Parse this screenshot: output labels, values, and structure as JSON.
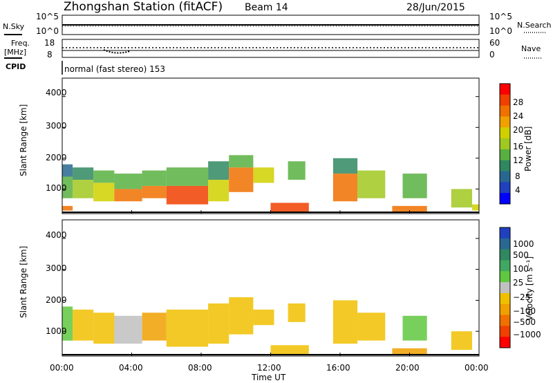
{
  "header": {
    "title": "Zhongshan Station (fitACF)",
    "beam": "Beam 14",
    "date": "28/Jun/2015"
  },
  "noise_panel": {
    "left_label": "N.Sky",
    "left_ticks": [
      "10^5",
      "10^0"
    ],
    "right_ticks": [
      "10^5",
      "10^0"
    ],
    "right_label": "N.Search"
  },
  "freq_panel": {
    "label_line1": "Freq.",
    "label_line2": "[MHz]",
    "left_ticks": [
      "18",
      "8"
    ],
    "right_ticks": [
      "60",
      "0"
    ],
    "right_label": "Nave"
  },
  "cpid": {
    "label": "CPID",
    "value": "normal (fast stereo) 153"
  },
  "axes": {
    "ylabel": "Slant Range [km]",
    "xlabel": "Time UT",
    "y_ticks": [
      "4000",
      "3000",
      "2000",
      "1000"
    ],
    "x_ticks": [
      "00:00",
      "04:00",
      "08:00",
      "12:00",
      "16:00",
      "20:00",
      "00:00"
    ]
  },
  "colorbars": {
    "power": {
      "label": "Power [dB]",
      "ticks": [
        "28",
        "24",
        "20",
        "16",
        "12",
        "8",
        "4"
      ],
      "colors": [
        "#ff0000",
        "#f04000",
        "#f07000",
        "#f0a000",
        "#d0d000",
        "#a0c820",
        "#58b040",
        "#308860",
        "#286890",
        "#2040c0",
        "#0000ff"
      ]
    },
    "velocity": {
      "label": "Velocity [m s⁻¹]",
      "ticks": [
        "1000",
        "500",
        "100",
        "25",
        "−25",
        "−100",
        "−500",
        "−1000"
      ],
      "colors": [
        "#2040c0",
        "#286890",
        "#308860",
        "#40a860",
        "#60c840",
        "#c0c0c0",
        "#f0c000",
        "#f0a000",
        "#f07000",
        "#f04000",
        "#ff0000"
      ]
    }
  },
  "chart_data": [
    {
      "type": "heatmap",
      "name": "power",
      "x_range": [
        "00:00",
        "24:00"
      ],
      "y_range_km": [
        200,
        4600
      ],
      "color_range_db": [
        0,
        32
      ],
      "cells": [
        {
          "t": [
            0.0,
            0.6
          ],
          "r": [
            300,
            450
          ],
          "v": 24
        },
        {
          "t": [
            0.0,
            0.6
          ],
          "r": [
            700,
            1400
          ],
          "v": 12
        },
        {
          "t": [
            0.0,
            0.6
          ],
          "r": [
            1400,
            1800
          ],
          "v": 8
        },
        {
          "t": [
            0.6,
            1.8
          ],
          "r": [
            700,
            1300
          ],
          "v": 16
        },
        {
          "t": [
            0.6,
            1.8
          ],
          "r": [
            1300,
            1700
          ],
          "v": 10
        },
        {
          "t": [
            1.8,
            3.0
          ],
          "r": [
            600,
            1200
          ],
          "v": 20
        },
        {
          "t": [
            1.8,
            3.0
          ],
          "r": [
            1200,
            1600
          ],
          "v": 12
        },
        {
          "t": [
            3.0,
            4.6
          ],
          "r": [
            600,
            1000
          ],
          "v": 26
        },
        {
          "t": [
            3.0,
            4.6
          ],
          "r": [
            1000,
            1500
          ],
          "v": 14
        },
        {
          "t": [
            4.6,
            6.0
          ],
          "r": [
            700,
            1100
          ],
          "v": 24
        },
        {
          "t": [
            4.6,
            6.0
          ],
          "r": [
            1100,
            1600
          ],
          "v": 12
        },
        {
          "t": [
            6.0,
            8.4
          ],
          "r": [
            500,
            1100
          ],
          "v": 28
        },
        {
          "t": [
            6.0,
            8.4
          ],
          "r": [
            1100,
            1700
          ],
          "v": 14
        },
        {
          "t": [
            8.4,
            9.6
          ],
          "r": [
            600,
            1300
          ],
          "v": 20
        },
        {
          "t": [
            8.4,
            9.6
          ],
          "r": [
            1300,
            1900
          ],
          "v": 10
        },
        {
          "t": [
            9.6,
            11.0
          ],
          "r": [
            900,
            1700
          ],
          "v": 24
        },
        {
          "t": [
            9.6,
            11.0
          ],
          "r": [
            1700,
            2100
          ],
          "v": 12
        },
        {
          "t": [
            11.0,
            12.2
          ],
          "r": [
            1200,
            1700
          ],
          "v": 20
        },
        {
          "t": [
            12.0,
            14.2
          ],
          "r": [
            250,
            550
          ],
          "v": 28
        },
        {
          "t": [
            13.0,
            14.0
          ],
          "r": [
            1300,
            1900
          ],
          "v": 14
        },
        {
          "t": [
            15.6,
            17.0
          ],
          "r": [
            600,
            1500
          ],
          "v": 24
        },
        {
          "t": [
            15.6,
            17.0
          ],
          "r": [
            1500,
            2000
          ],
          "v": 10
        },
        {
          "t": [
            17.0,
            18.6
          ],
          "r": [
            700,
            1600
          ],
          "v": 16
        },
        {
          "t": [
            19.0,
            21.0
          ],
          "r": [
            250,
            450
          ],
          "v": 26
        },
        {
          "t": [
            19.6,
            21.0
          ],
          "r": [
            700,
            1500
          ],
          "v": 12
        },
        {
          "t": [
            22.4,
            23.6
          ],
          "r": [
            400,
            1000
          ],
          "v": 16
        },
        {
          "t": [
            23.6,
            24.0
          ],
          "r": [
            300,
            500
          ],
          "v": 20
        }
      ]
    },
    {
      "type": "heatmap",
      "name": "velocity",
      "x_range": [
        "00:00",
        "24:00"
      ],
      "y_range_km": [
        200,
        4600
      ],
      "color_range_m_s": [
        -1000,
        1000
      ],
      "cells": [
        {
          "t": [
            0.0,
            0.6
          ],
          "r": [
            700,
            1800
          ],
          "v": 150
        },
        {
          "t": [
            0.6,
            1.8
          ],
          "r": [
            700,
            1700
          ],
          "v": -200
        },
        {
          "t": [
            1.8,
            3.0
          ],
          "r": [
            600,
            1600
          ],
          "v": -150
        },
        {
          "t": [
            3.0,
            4.6
          ],
          "r": [
            600,
            1500
          ],
          "v": 60
        },
        {
          "t": [
            4.6,
            6.0
          ],
          "r": [
            700,
            1600
          ],
          "v": -300
        },
        {
          "t": [
            6.0,
            8.4
          ],
          "r": [
            500,
            1700
          ],
          "v": -250
        },
        {
          "t": [
            8.4,
            9.6
          ],
          "r": [
            600,
            1900
          ],
          "v": -200
        },
        {
          "t": [
            9.6,
            11.0
          ],
          "r": [
            900,
            2100
          ],
          "v": -150
        },
        {
          "t": [
            11.0,
            12.2
          ],
          "r": [
            1200,
            1700
          ],
          "v": -200
        },
        {
          "t": [
            12.0,
            14.2
          ],
          "r": [
            250,
            550
          ],
          "v": -200
        },
        {
          "t": [
            13.0,
            14.0
          ],
          "r": [
            1300,
            1900
          ],
          "v": -150
        },
        {
          "t": [
            15.6,
            17.0
          ],
          "r": [
            600,
            2000
          ],
          "v": -150
        },
        {
          "t": [
            17.0,
            18.6
          ],
          "r": [
            700,
            1600
          ],
          "v": -120
        },
        {
          "t": [
            19.0,
            21.0
          ],
          "r": [
            250,
            450
          ],
          "v": -300
        },
        {
          "t": [
            19.6,
            21.0
          ],
          "r": [
            700,
            1500
          ],
          "v": 120
        },
        {
          "t": [
            22.4,
            23.6
          ],
          "r": [
            400,
            1000
          ],
          "v": -150
        }
      ]
    }
  ]
}
